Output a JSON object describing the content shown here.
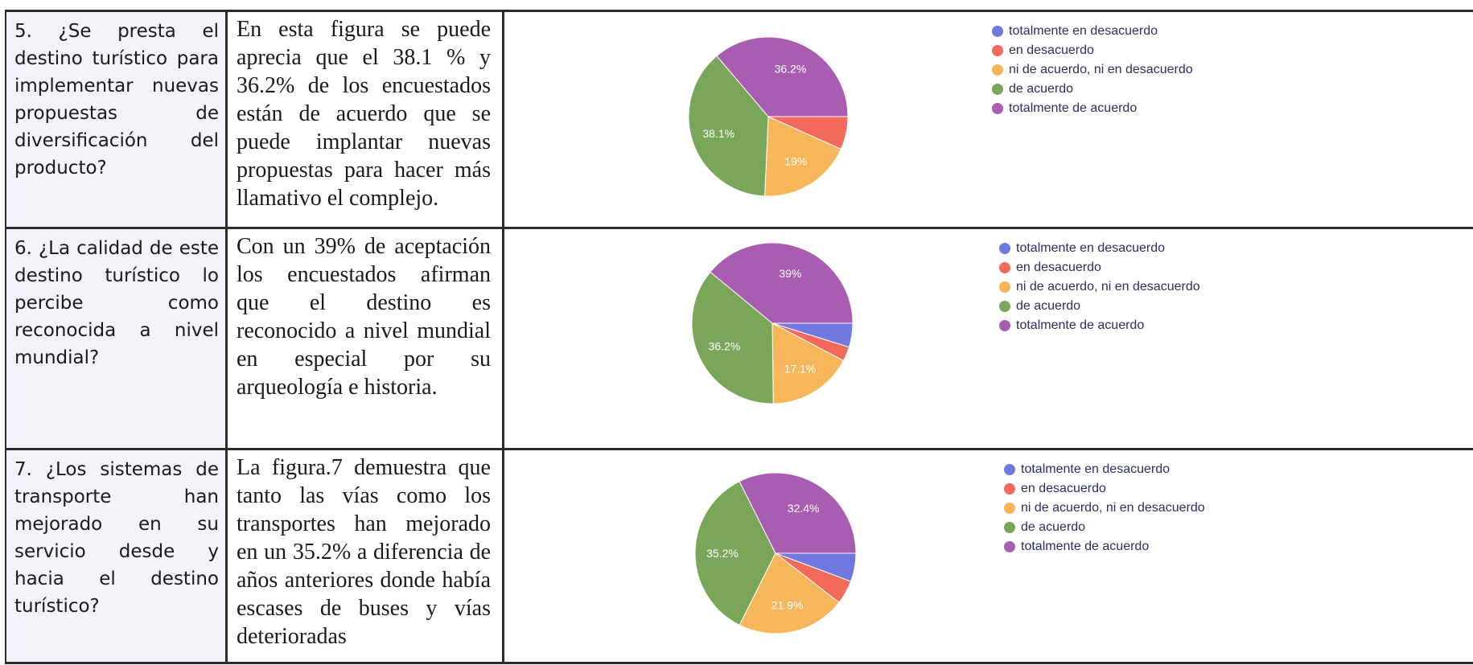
{
  "legend_labels": [
    "totalmente en desacuerdo",
    "en desacuerdo",
    "ni de acuerdo, ni en desacuerdo",
    "de acuerdo",
    "totalmente de acuerdo"
  ],
  "colors": {
    "totalmente_en_desacuerdo": "#6f79e0",
    "en_desacuerdo": "#f3695a",
    "ni_de_acuerdo": "#f7b65a",
    "de_acuerdo": "#79a659",
    "totalmente_de_acuerdo": "#a85db0"
  },
  "rows": [
    {
      "question": "5. ¿Se presta el destino turístico para implementar nuevas propuestas de diversificación del producto?",
      "analysis": "En esta figura se puede aprecia que el 38.1 % y 36.2% de los encuestados están de acuerdo que se puede implantar nuevas propuestas para hacer más llamativo el complejo."
    },
    {
      "question": "6. ¿La calidad de este destino turístico lo percibe como reconocida a nivel mundial?",
      "analysis": "Con un 39% de aceptación los encuestados afirman que el destino es reconocido a nivel mundial en especial por su arqueología e historia."
    },
    {
      "question": "7. ¿Los sistemas de transporte han mejorado en su servicio desde y hacia el destino turístico?",
      "analysis": "La figura.7 demuestra que tanto las vías como los transportes han mejorado en un 35.2% a diferencia de años anteriores donde había escases de buses y vías deterioradas"
    }
  ],
  "chart_data": [
    {
      "type": "pie",
      "categories": [
        "totalmente en desacuerdo",
        "en desacuerdo",
        "ni de acuerdo, ni en desacuerdo",
        "de acuerdo",
        "totalmente de acuerdo"
      ],
      "values": [
        0,
        6.7,
        19,
        38.1,
        36.2
      ],
      "labels": [
        "",
        "",
        "19%",
        "38.1%",
        "36.2%"
      ],
      "legend": "right"
    },
    {
      "type": "pie",
      "categories": [
        "totalmente en desacuerdo",
        "en desacuerdo",
        "ni de acuerdo, ni en desacuerdo",
        "de acuerdo",
        "totalmente de acuerdo"
      ],
      "values": [
        4.8,
        2.9,
        17.1,
        36.2,
        39
      ],
      "labels": [
        "",
        "",
        "17.1%",
        "36.2%",
        "39%"
      ],
      "legend": "right"
    },
    {
      "type": "pie",
      "categories": [
        "totalmente en desacuerdo",
        "en desacuerdo",
        "ni de acuerdo, ni en desacuerdo",
        "de acuerdo",
        "totalmente de acuerdo"
      ],
      "values": [
        5.7,
        4.8,
        21.9,
        35.2,
        32.4
      ],
      "labels": [
        "",
        "",
        "21.9%",
        "35.2%",
        "32.4%"
      ],
      "legend": "right"
    }
  ]
}
